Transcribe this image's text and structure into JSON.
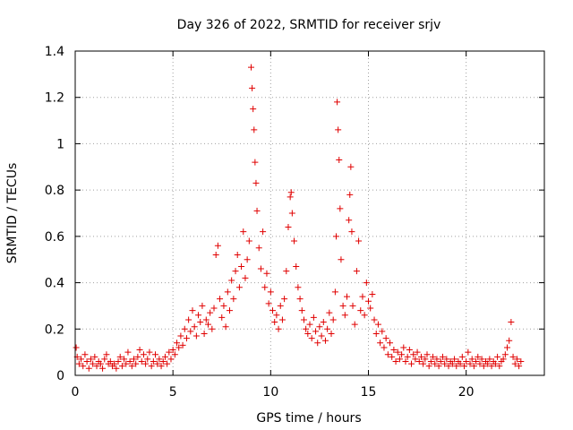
{
  "chart_data": {
    "type": "scatter",
    "title": "Day 326 of 2022, SRMTID for receiver srjv",
    "xlabel": "GPS time / hours",
    "ylabel": "SRMTID / TECUs",
    "xlim": [
      0,
      24
    ],
    "ylim": [
      0,
      1.4
    ],
    "xticks": [
      0,
      5,
      10,
      15,
      20
    ],
    "xtick_labels": [
      "0",
      "5",
      "10",
      "15",
      "20"
    ],
    "yticks": [
      0,
      0.2,
      0.4,
      0.6,
      0.8,
      1,
      1.2,
      1.4
    ],
    "ytick_labels": [
      "0",
      "0.2",
      "0.4",
      "0.6",
      "0.8",
      "1",
      "1.2",
      "1.4"
    ],
    "grid": true,
    "marker": "+",
    "color": "#e00000",
    "series": [
      {
        "name": "srjv",
        "points": [
          [
            0.05,
            0.12
          ],
          [
            0.1,
            0.08
          ],
          [
            0.2,
            0.05
          ],
          [
            0.3,
            0.07
          ],
          [
            0.4,
            0.04
          ],
          [
            0.5,
            0.09
          ],
          [
            0.6,
            0.06
          ],
          [
            0.7,
            0.03
          ],
          [
            0.8,
            0.07
          ],
          [
            0.9,
            0.05
          ],
          [
            1.0,
            0.08
          ],
          [
            1.1,
            0.04
          ],
          [
            1.2,
            0.06
          ],
          [
            1.3,
            0.05
          ],
          [
            1.4,
            0.03
          ],
          [
            1.5,
            0.07
          ],
          [
            1.6,
            0.09
          ],
          [
            1.7,
            0.05
          ],
          [
            1.8,
            0.06
          ],
          [
            1.9,
            0.04
          ],
          [
            2.0,
            0.05
          ],
          [
            2.1,
            0.03
          ],
          [
            2.2,
            0.06
          ],
          [
            2.3,
            0.08
          ],
          [
            2.4,
            0.04
          ],
          [
            2.5,
            0.07
          ],
          [
            2.6,
            0.05
          ],
          [
            2.7,
            0.1
          ],
          [
            2.8,
            0.06
          ],
          [
            2.9,
            0.04
          ],
          [
            3.0,
            0.07
          ],
          [
            3.1,
            0.05
          ],
          [
            3.2,
            0.08
          ],
          [
            3.3,
            0.11
          ],
          [
            3.4,
            0.06
          ],
          [
            3.5,
            0.09
          ],
          [
            3.6,
            0.05
          ],
          [
            3.7,
            0.07
          ],
          [
            3.8,
            0.1
          ],
          [
            3.9,
            0.04
          ],
          [
            4.0,
            0.06
          ],
          [
            4.1,
            0.09
          ],
          [
            4.2,
            0.05
          ],
          [
            4.3,
            0.07
          ],
          [
            4.4,
            0.04
          ],
          [
            4.5,
            0.06
          ],
          [
            4.6,
            0.08
          ],
          [
            4.7,
            0.05
          ],
          [
            4.8,
            0.1
          ],
          [
            4.9,
            0.07
          ],
          [
            5.0,
            0.11
          ],
          [
            5.1,
            0.09
          ],
          [
            5.2,
            0.14
          ],
          [
            5.3,
            0.12
          ],
          [
            5.4,
            0.17
          ],
          [
            5.5,
            0.13
          ],
          [
            5.6,
            0.2
          ],
          [
            5.7,
            0.16
          ],
          [
            5.8,
            0.24
          ],
          [
            5.9,
            0.19
          ],
          [
            6.0,
            0.28
          ],
          [
            6.1,
            0.21
          ],
          [
            6.2,
            0.17
          ],
          [
            6.3,
            0.26
          ],
          [
            6.4,
            0.23
          ],
          [
            6.5,
            0.3
          ],
          [
            6.6,
            0.18
          ],
          [
            6.7,
            0.24
          ],
          [
            6.8,
            0.22
          ],
          [
            6.9,
            0.27
          ],
          [
            7.0,
            0.2
          ],
          [
            7.1,
            0.29
          ],
          [
            7.2,
            0.52
          ],
          [
            7.3,
            0.56
          ],
          [
            7.4,
            0.33
          ],
          [
            7.5,
            0.25
          ],
          [
            7.6,
            0.3
          ],
          [
            7.7,
            0.21
          ],
          [
            7.8,
            0.36
          ],
          [
            7.9,
            0.28
          ],
          [
            8.0,
            0.41
          ],
          [
            8.1,
            0.33
          ],
          [
            8.2,
            0.45
          ],
          [
            8.3,
            0.52
          ],
          [
            8.4,
            0.38
          ],
          [
            8.5,
            0.47
          ],
          [
            8.6,
            0.62
          ],
          [
            8.7,
            0.42
          ],
          [
            8.8,
            0.5
          ],
          [
            8.9,
            0.58
          ],
          [
            9.0,
            1.33
          ],
          [
            9.05,
            1.24
          ],
          [
            9.1,
            1.15
          ],
          [
            9.15,
            1.06
          ],
          [
            9.2,
            0.92
          ],
          [
            9.25,
            0.83
          ],
          [
            9.3,
            0.71
          ],
          [
            9.4,
            0.55
          ],
          [
            9.5,
            0.46
          ],
          [
            9.6,
            0.62
          ],
          [
            9.7,
            0.38
          ],
          [
            9.8,
            0.44
          ],
          [
            9.9,
            0.31
          ],
          [
            10.0,
            0.36
          ],
          [
            10.1,
            0.28
          ],
          [
            10.2,
            0.23
          ],
          [
            10.3,
            0.26
          ],
          [
            10.4,
            0.2
          ],
          [
            10.5,
            0.3
          ],
          [
            10.6,
            0.24
          ],
          [
            10.7,
            0.33
          ],
          [
            10.8,
            0.45
          ],
          [
            10.9,
            0.64
          ],
          [
            11.0,
            0.77
          ],
          [
            11.05,
            0.79
          ],
          [
            11.1,
            0.7
          ],
          [
            11.2,
            0.58
          ],
          [
            11.3,
            0.47
          ],
          [
            11.4,
            0.38
          ],
          [
            11.5,
            0.33
          ],
          [
            11.6,
            0.28
          ],
          [
            11.7,
            0.24
          ],
          [
            11.8,
            0.2
          ],
          [
            11.9,
            0.18
          ],
          [
            12.0,
            0.22
          ],
          [
            12.1,
            0.16
          ],
          [
            12.2,
            0.25
          ],
          [
            12.3,
            0.19
          ],
          [
            12.4,
            0.14
          ],
          [
            12.5,
            0.21
          ],
          [
            12.6,
            0.17
          ],
          [
            12.7,
            0.23
          ],
          [
            12.8,
            0.15
          ],
          [
            12.9,
            0.2
          ],
          [
            13.0,
            0.27
          ],
          [
            13.1,
            0.18
          ],
          [
            13.2,
            0.24
          ],
          [
            13.3,
            0.36
          ],
          [
            13.35,
            0.6
          ],
          [
            13.4,
            1.18
          ],
          [
            13.45,
            1.06
          ],
          [
            13.5,
            0.93
          ],
          [
            13.55,
            0.72
          ],
          [
            13.6,
            0.5
          ],
          [
            13.7,
            0.3
          ],
          [
            13.8,
            0.26
          ],
          [
            13.9,
            0.34
          ],
          [
            14.0,
            0.67
          ],
          [
            14.05,
            0.78
          ],
          [
            14.1,
            0.9
          ],
          [
            14.15,
            0.62
          ],
          [
            14.2,
            0.3
          ],
          [
            14.3,
            0.22
          ],
          [
            14.4,
            0.45
          ],
          [
            14.5,
            0.58
          ],
          [
            14.6,
            0.28
          ],
          [
            14.7,
            0.34
          ],
          [
            14.8,
            0.26
          ],
          [
            14.9,
            0.4
          ],
          [
            15.0,
            0.32
          ],
          [
            15.1,
            0.29
          ],
          [
            15.2,
            0.35
          ],
          [
            15.3,
            0.24
          ],
          [
            15.4,
            0.18
          ],
          [
            15.5,
            0.22
          ],
          [
            15.6,
            0.14
          ],
          [
            15.7,
            0.19
          ],
          [
            15.8,
            0.12
          ],
          [
            15.9,
            0.16
          ],
          [
            16.0,
            0.09
          ],
          [
            16.1,
            0.14
          ],
          [
            16.2,
            0.08
          ],
          [
            16.3,
            0.11
          ],
          [
            16.4,
            0.06
          ],
          [
            16.5,
            0.1
          ],
          [
            16.6,
            0.07
          ],
          [
            16.7,
            0.09
          ],
          [
            16.8,
            0.12
          ],
          [
            16.9,
            0.06
          ],
          [
            17.0,
            0.08
          ],
          [
            17.1,
            0.11
          ],
          [
            17.2,
            0.05
          ],
          [
            17.3,
            0.09
          ],
          [
            17.4,
            0.07
          ],
          [
            17.5,
            0.1
          ],
          [
            17.6,
            0.06
          ],
          [
            17.7,
            0.08
          ],
          [
            17.8,
            0.05
          ],
          [
            17.9,
            0.07
          ],
          [
            18.0,
            0.09
          ],
          [
            18.1,
            0.04
          ],
          [
            18.2,
            0.06
          ],
          [
            18.3,
            0.08
          ],
          [
            18.4,
            0.05
          ],
          [
            18.5,
            0.07
          ],
          [
            18.6,
            0.04
          ],
          [
            18.7,
            0.06
          ],
          [
            18.8,
            0.08
          ],
          [
            18.9,
            0.05
          ],
          [
            19.0,
            0.07
          ],
          [
            19.1,
            0.04
          ],
          [
            19.2,
            0.06
          ],
          [
            19.3,
            0.05
          ],
          [
            19.4,
            0.07
          ],
          [
            19.5,
            0.04
          ],
          [
            19.6,
            0.06
          ],
          [
            19.7,
            0.05
          ],
          [
            19.8,
            0.08
          ],
          [
            19.9,
            0.04
          ],
          [
            20.0,
            0.06
          ],
          [
            20.1,
            0.1
          ],
          [
            20.2,
            0.05
          ],
          [
            20.3,
            0.07
          ],
          [
            20.4,
            0.04
          ],
          [
            20.5,
            0.06
          ],
          [
            20.6,
            0.08
          ],
          [
            20.7,
            0.05
          ],
          [
            20.8,
            0.07
          ],
          [
            20.9,
            0.04
          ],
          [
            21.0,
            0.06
          ],
          [
            21.1,
            0.05
          ],
          [
            21.2,
            0.07
          ],
          [
            21.3,
            0.04
          ],
          [
            21.4,
            0.06
          ],
          [
            21.5,
            0.05
          ],
          [
            21.6,
            0.08
          ],
          [
            21.7,
            0.04
          ],
          [
            21.8,
            0.06
          ],
          [
            21.9,
            0.07
          ],
          [
            22.0,
            0.09
          ],
          [
            22.1,
            0.12
          ],
          [
            22.2,
            0.15
          ],
          [
            22.3,
            0.23
          ],
          [
            22.4,
            0.08
          ],
          [
            22.5,
            0.05
          ],
          [
            22.6,
            0.07
          ],
          [
            22.7,
            0.04
          ],
          [
            22.8,
            0.06
          ]
        ]
      }
    ]
  }
}
